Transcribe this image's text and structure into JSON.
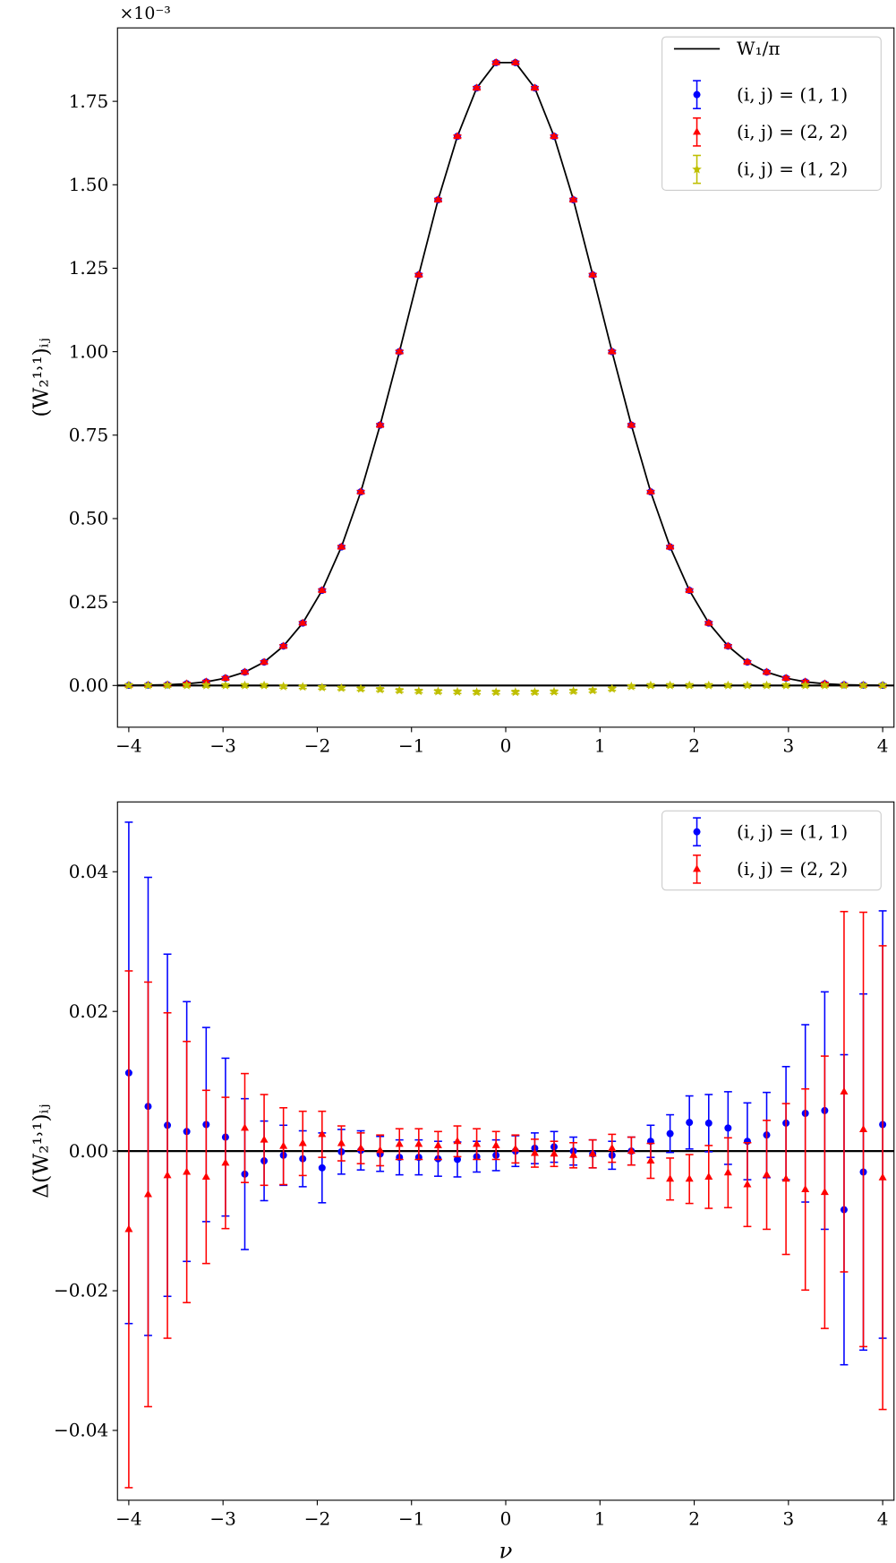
{
  "chart_data": [
    {
      "type": "errorbar",
      "offset_text": "×10⁻³",
      "ylabel": "(W₂¹˒¹)ᵢⱼ",
      "x": [
        -4,
        -3.795,
        -3.59,
        -3.385,
        -3.179,
        -2.974,
        -2.769,
        -2.564,
        -2.359,
        -2.154,
        -1.949,
        -1.744,
        -1.538,
        -1.333,
        -1.128,
        -0.923,
        -0.718,
        -0.513,
        -0.308,
        -0.103,
        0.103,
        0.308,
        0.513,
        0.718,
        0.923,
        1.128,
        1.333,
        1.538,
        1.744,
        1.949,
        2.154,
        2.359,
        2.564,
        2.769,
        2.974,
        3.179,
        3.385,
        3.59,
        3.795,
        4
      ],
      "xlim": [
        -4.12,
        4.12
      ],
      "xticks": [
        {
          "value": -4,
          "label": "−4"
        },
        {
          "value": -3,
          "label": "−3"
        },
        {
          "value": -2,
          "label": "−2"
        },
        {
          "value": -1,
          "label": "−1"
        },
        0,
        1,
        2,
        3,
        4
      ],
      "ylim": [
        -0.125,
        1.97
      ],
      "yticks": [
        {
          "value": 0,
          "label": "0.00"
        },
        {
          "value": 0.25,
          "label": "0.25"
        },
        {
          "value": 0.5,
          "label": "0.50"
        },
        {
          "value": 0.75,
          "label": "0.75"
        },
        {
          "value": 1,
          "label": "1.00"
        },
        {
          "value": 1.25,
          "label": "1.25"
        },
        {
          "value": 1.5,
          "label": "1.50"
        },
        {
          "value": 1.75,
          "label": "1.75"
        }
      ],
      "hline": 0,
      "legend": "upper right",
      "series": [
        {
          "name": "W₁/π",
          "kind": "line",
          "color": "#000000",
          "values": [
            0.0004,
            0.001,
            0.002,
            0.005,
            0.011,
            0.022,
            0.04,
            0.07,
            0.118,
            0.187,
            0.285,
            0.415,
            0.58,
            0.78,
            1.0,
            1.23,
            1.455,
            1.645,
            1.79,
            1.866,
            1.866,
            1.79,
            1.645,
            1.455,
            1.23,
            1.0,
            0.78,
            0.58,
            0.415,
            0.285,
            0.187,
            0.118,
            0.07,
            0.04,
            0.022,
            0.011,
            0.005,
            0.002,
            0.001,
            0.0004
          ]
        },
        {
          "name": "(i, j) = (1, 1)",
          "kind": "errorbar",
          "marker": "circle",
          "color": "#0000ff",
          "values": [
            0.0004,
            0.001,
            0.002,
            0.005,
            0.011,
            0.022,
            0.04,
            0.07,
            0.118,
            0.187,
            0.285,
            0.415,
            0.58,
            0.78,
            1.0,
            1.23,
            1.455,
            1.645,
            1.79,
            1.866,
            1.866,
            1.79,
            1.645,
            1.455,
            1.23,
            1.0,
            0.78,
            0.58,
            0.415,
            0.285,
            0.187,
            0.118,
            0.07,
            0.04,
            0.022,
            0.011,
            0.005,
            0.002,
            0.001,
            0.0004
          ],
          "errors": [
            0.004,
            0.004,
            0.004,
            0.004,
            0.004,
            0.004,
            0.004,
            0.004,
            0.004,
            0.004,
            0.004,
            0.004,
            0.004,
            0.004,
            0.004,
            0.004,
            0.004,
            0.004,
            0.004,
            0.004,
            0.004,
            0.004,
            0.004,
            0.004,
            0.004,
            0.004,
            0.004,
            0.004,
            0.004,
            0.004,
            0.004,
            0.004,
            0.004,
            0.004,
            0.004,
            0.004,
            0.004,
            0.004,
            0.004,
            0.004
          ]
        },
        {
          "name": "(i, j) = (2, 2)",
          "kind": "errorbar",
          "marker": "triangle",
          "color": "#ff0000",
          "values": [
            0.0004,
            0.001,
            0.002,
            0.005,
            0.011,
            0.022,
            0.04,
            0.07,
            0.118,
            0.187,
            0.285,
            0.415,
            0.58,
            0.78,
            1.0,
            1.23,
            1.455,
            1.645,
            1.79,
            1.866,
            1.866,
            1.79,
            1.645,
            1.455,
            1.23,
            1.0,
            0.78,
            0.58,
            0.415,
            0.285,
            0.187,
            0.118,
            0.07,
            0.04,
            0.022,
            0.011,
            0.005,
            0.002,
            0.001,
            0.0004
          ],
          "errors": [
            0.004,
            0.004,
            0.004,
            0.004,
            0.004,
            0.004,
            0.004,
            0.004,
            0.004,
            0.004,
            0.004,
            0.004,
            0.004,
            0.004,
            0.004,
            0.004,
            0.004,
            0.004,
            0.004,
            0.004,
            0.004,
            0.004,
            0.004,
            0.004,
            0.004,
            0.004,
            0.004,
            0.004,
            0.004,
            0.004,
            0.004,
            0.004,
            0.004,
            0.004,
            0.004,
            0.004,
            0.004,
            0.004,
            0.004,
            0.004
          ]
        },
        {
          "name": "(i, j) = (1, 2)",
          "kind": "errorbar",
          "marker": "star",
          "color": "#bfbf00",
          "values": [
            0,
            0,
            0,
            0,
            0,
            0,
            0,
            0,
            -0.003,
            -0.004,
            -0.006,
            -0.008,
            -0.01,
            -0.012,
            -0.015,
            -0.017,
            -0.018,
            -0.019,
            -0.02,
            -0.02,
            -0.02,
            -0.02,
            -0.019,
            -0.017,
            -0.015,
            -0.01,
            -0.003,
            0,
            0,
            0,
            0,
            0,
            0,
            0,
            0,
            0,
            0,
            0,
            0,
            0
          ],
          "errors": [
            0.005,
            0.005,
            0.005,
            0.005,
            0.005,
            0.005,
            0.005,
            0.005,
            0.005,
            0.005,
            0.005,
            0.005,
            0.005,
            0.005,
            0.005,
            0.005,
            0.005,
            0.005,
            0.005,
            0.005,
            0.005,
            0.005,
            0.005,
            0.005,
            0.005,
            0.005,
            0.005,
            0.005,
            0.005,
            0.005,
            0.005,
            0.005,
            0.005,
            0.005,
            0.005,
            0.005,
            0.005,
            0.005,
            0.005,
            0.005
          ]
        }
      ]
    },
    {
      "type": "errorbar",
      "ylabel": "Δ(W₂¹˒¹)ᵢⱼ",
      "xlabel": "ν",
      "x": [
        -4,
        -3.795,
        -3.59,
        -3.385,
        -3.179,
        -2.974,
        -2.769,
        -2.564,
        -2.359,
        -2.154,
        -1.949,
        -1.744,
        -1.538,
        -1.333,
        -1.128,
        -0.923,
        -0.718,
        -0.513,
        -0.308,
        -0.103,
        0.103,
        0.308,
        0.513,
        0.718,
        0.923,
        1.128,
        1.333,
        1.538,
        1.744,
        1.949,
        2.154,
        2.359,
        2.564,
        2.769,
        2.974,
        3.179,
        3.385,
        3.59,
        3.795,
        4
      ],
      "xlim": [
        -4.12,
        4.12
      ],
      "xticks": [
        {
          "value": -4,
          "label": "−4"
        },
        {
          "value": -3,
          "label": "−3"
        },
        {
          "value": -2,
          "label": "−2"
        },
        {
          "value": -1,
          "label": "−1"
        },
        0,
        1,
        2,
        3,
        4
      ],
      "ylim": [
        -0.05,
        0.05
      ],
      "yticks": [
        {
          "value": -0.04,
          "label": "−0.04"
        },
        {
          "value": -0.02,
          "label": "−0.02"
        },
        {
          "value": 0,
          "label": "0.00"
        },
        {
          "value": 0.02,
          "label": "0.02"
        },
        {
          "value": 0.04,
          "label": "0.04"
        }
      ],
      "hline": 0,
      "legend": "upper right",
      "series": [
        {
          "name": "(i, j) = (1, 1)",
          "kind": "errorbar",
          "marker": "circle",
          "color": "#0000ff",
          "values": [
            0.0112,
            0.0064,
            0.0037,
            0.0028,
            0.0038,
            0.002,
            -0.0033,
            -0.0014,
            -0.0006,
            -0.0011,
            -0.0024,
            -0.0001,
            0.0001,
            -0.0004,
            -0.0009,
            -0.0009,
            -0.0011,
            -0.0012,
            -0.0008,
            -0.0006,
            0,
            0.0004,
            0.0006,
            0,
            -0.0004,
            -0.0006,
            0,
            0.0014,
            0.0025,
            0.0041,
            0.004,
            0.0033,
            0.0014,
            0.0023,
            0.004,
            0.0054,
            0.0058,
            -0.0084,
            -0.003,
            0.0038
          ],
          "errors": [
            0.0359,
            0.0328,
            0.0245,
            0.0186,
            0.0139,
            0.0113,
            0.0108,
            0.0057,
            0.0043,
            0.004,
            0.005,
            0.0032,
            0.0028,
            0.0025,
            0.0025,
            0.0025,
            0.0025,
            0.0025,
            0.0022,
            0.0022,
            0.0022,
            0.0022,
            0.0022,
            0.002,
            0.002,
            0.002,
            0.002,
            0.0023,
            0.0027,
            0.0038,
            0.0041,
            0.0052,
            0.0055,
            0.0061,
            0.0081,
            0.0127,
            0.017,
            0.0222,
            0.0255,
            0.0306
          ]
        },
        {
          "name": "(i, j) = (2, 2)",
          "kind": "errorbar",
          "marker": "triangle",
          "color": "#ff0000",
          "values": [
            -0.0112,
            -0.0062,
            -0.0035,
            -0.003,
            -0.0037,
            -0.0017,
            0.0033,
            0.0016,
            0.0007,
            0.0011,
            0.0024,
            0.0011,
            0.0004,
            0.0001,
            0.001,
            0.001,
            0.0008,
            0.0014,
            0.001,
            0.0008,
            0.0003,
            -0.0003,
            -0.0004,
            -0.0006,
            -0.0004,
            0.0004,
            0,
            -0.0014,
            -0.004,
            -0.004,
            -0.0037,
            -0.0031,
            -0.0048,
            -0.0034,
            -0.004,
            -0.0055,
            -0.0059,
            0.0085,
            0.0031,
            -0.0038
          ],
          "errors": [
            0.037,
            0.0304,
            0.0233,
            0.0187,
            0.0124,
            0.0094,
            0.0078,
            0.0065,
            0.0055,
            0.0046,
            0.0033,
            0.0025,
            0.0022,
            0.0022,
            0.0022,
            0.0022,
            0.002,
            0.0022,
            0.0022,
            0.002,
            0.002,
            0.002,
            0.0018,
            0.0018,
            0.002,
            0.002,
            0.002,
            0.0025,
            0.003,
            0.0035,
            0.0045,
            0.005,
            0.006,
            0.0078,
            0.0108,
            0.0144,
            0.0195,
            0.0258,
            0.0311,
            0.0332
          ]
        }
      ]
    }
  ]
}
